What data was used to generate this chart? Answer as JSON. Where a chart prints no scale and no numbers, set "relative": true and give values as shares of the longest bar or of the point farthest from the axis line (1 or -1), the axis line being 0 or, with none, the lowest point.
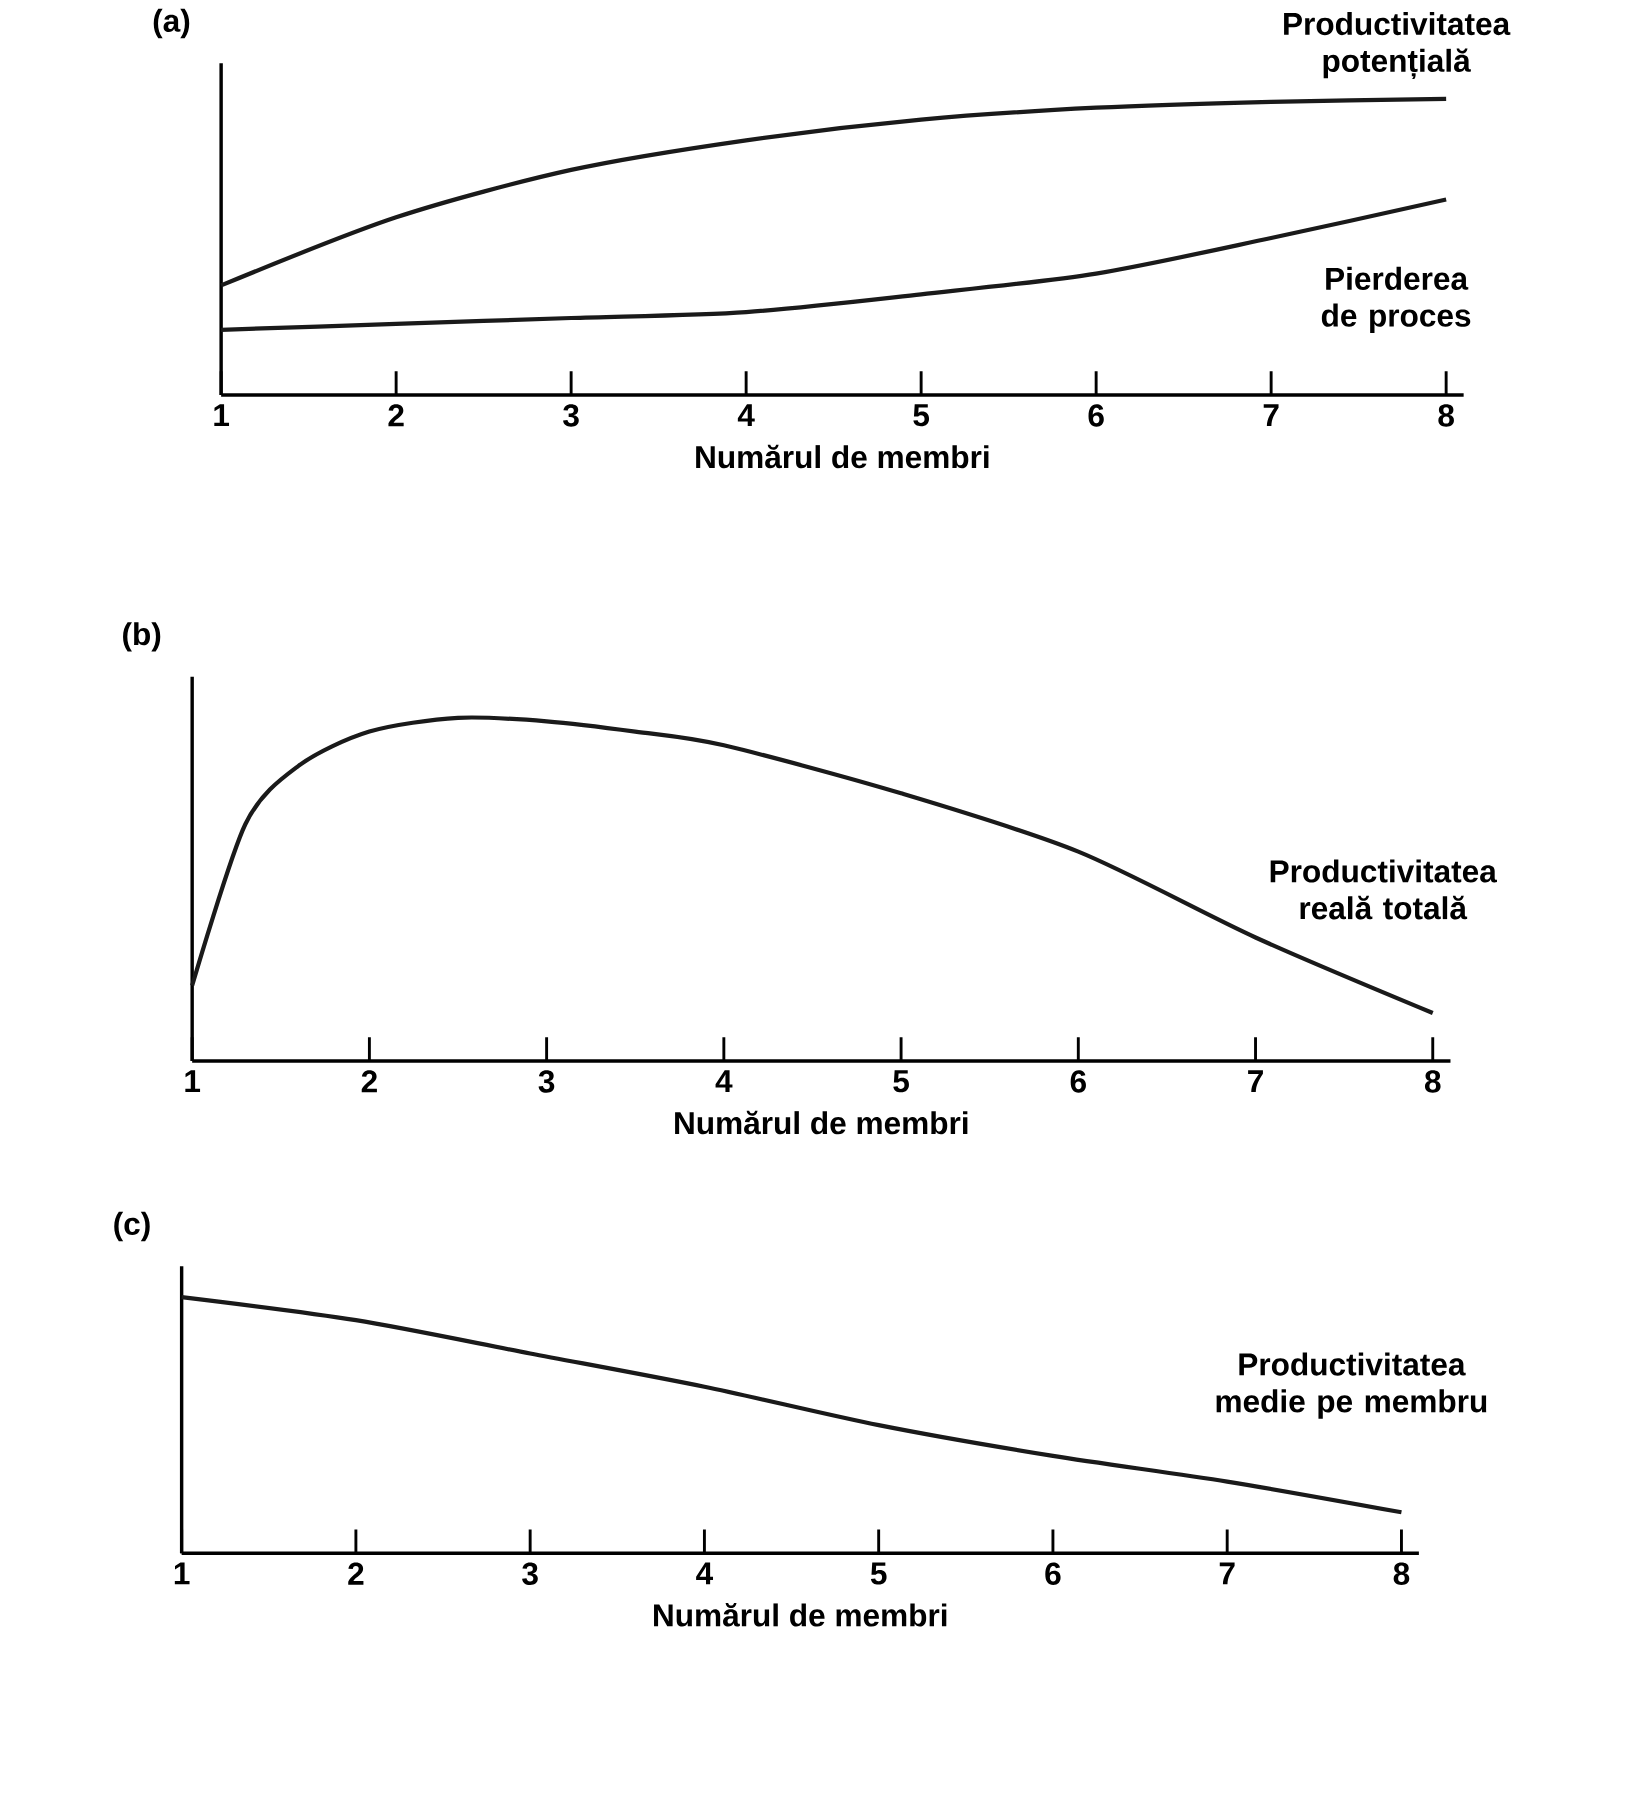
{
  "chart_data": [
    {
      "type": "line",
      "title": "(a)",
      "xlabel": "Numărul de membri",
      "relative": true,
      "xlim": [
        1,
        8.1
      ],
      "xticks": [
        1,
        2,
        3,
        4,
        5,
        6,
        7,
        8
      ],
      "series": [
        {
          "name": "Productivitatea potențială",
          "color": "#1a1a1a",
          "x": [
            1,
            2,
            3,
            4,
            5,
            6,
            7,
            8
          ],
          "values": [
            0.37,
            0.6,
            0.76,
            0.86,
            0.93,
            0.97,
            0.99,
            1
          ]
        },
        {
          "name": "Pierderea de proces",
          "color": "#1a1a1a",
          "x": [
            1,
            2,
            3,
            4,
            5,
            6,
            7,
            8
          ],
          "values": [
            0.22,
            0.24,
            0.26,
            0.28,
            0.34,
            0.41,
            0.53,
            0.66
          ]
        }
      ]
    },
    {
      "type": "line",
      "title": "(b)",
      "xlabel": "Numărul de membri",
      "relative": true,
      "xlim": [
        1,
        8.1
      ],
      "xticks": [
        1,
        2,
        3,
        4,
        5,
        6,
        7,
        8
      ],
      "series": [
        {
          "name": "Productivitatea reală totală",
          "color": "#1a1a1a",
          "x": [
            1,
            1.3,
            1.6,
            2,
            2.5,
            3,
            3.5,
            4,
            5,
            6,
            7,
            8
          ],
          "values": [
            0.22,
            0.69,
            0.86,
            0.96,
            1,
            0.99,
            0.96,
            0.92,
            0.78,
            0.61,
            0.36,
            0.14
          ]
        }
      ]
    },
    {
      "type": "line",
      "title": "(c)",
      "xlabel": "Numărul de membri",
      "relative": true,
      "xlim": [
        1,
        8.1
      ],
      "xticks": [
        1,
        2,
        3,
        4,
        5,
        6,
        7,
        8
      ],
      "series": [
        {
          "name": "Productivitatea medie pe membru",
          "color": "#1a1a1a",
          "x": [
            1,
            2,
            3,
            4,
            5,
            6,
            7,
            8
          ],
          "values": [
            1,
            0.91,
            0.78,
            0.65,
            0.5,
            0.38,
            0.28,
            0.16
          ]
        }
      ]
    }
  ]
}
